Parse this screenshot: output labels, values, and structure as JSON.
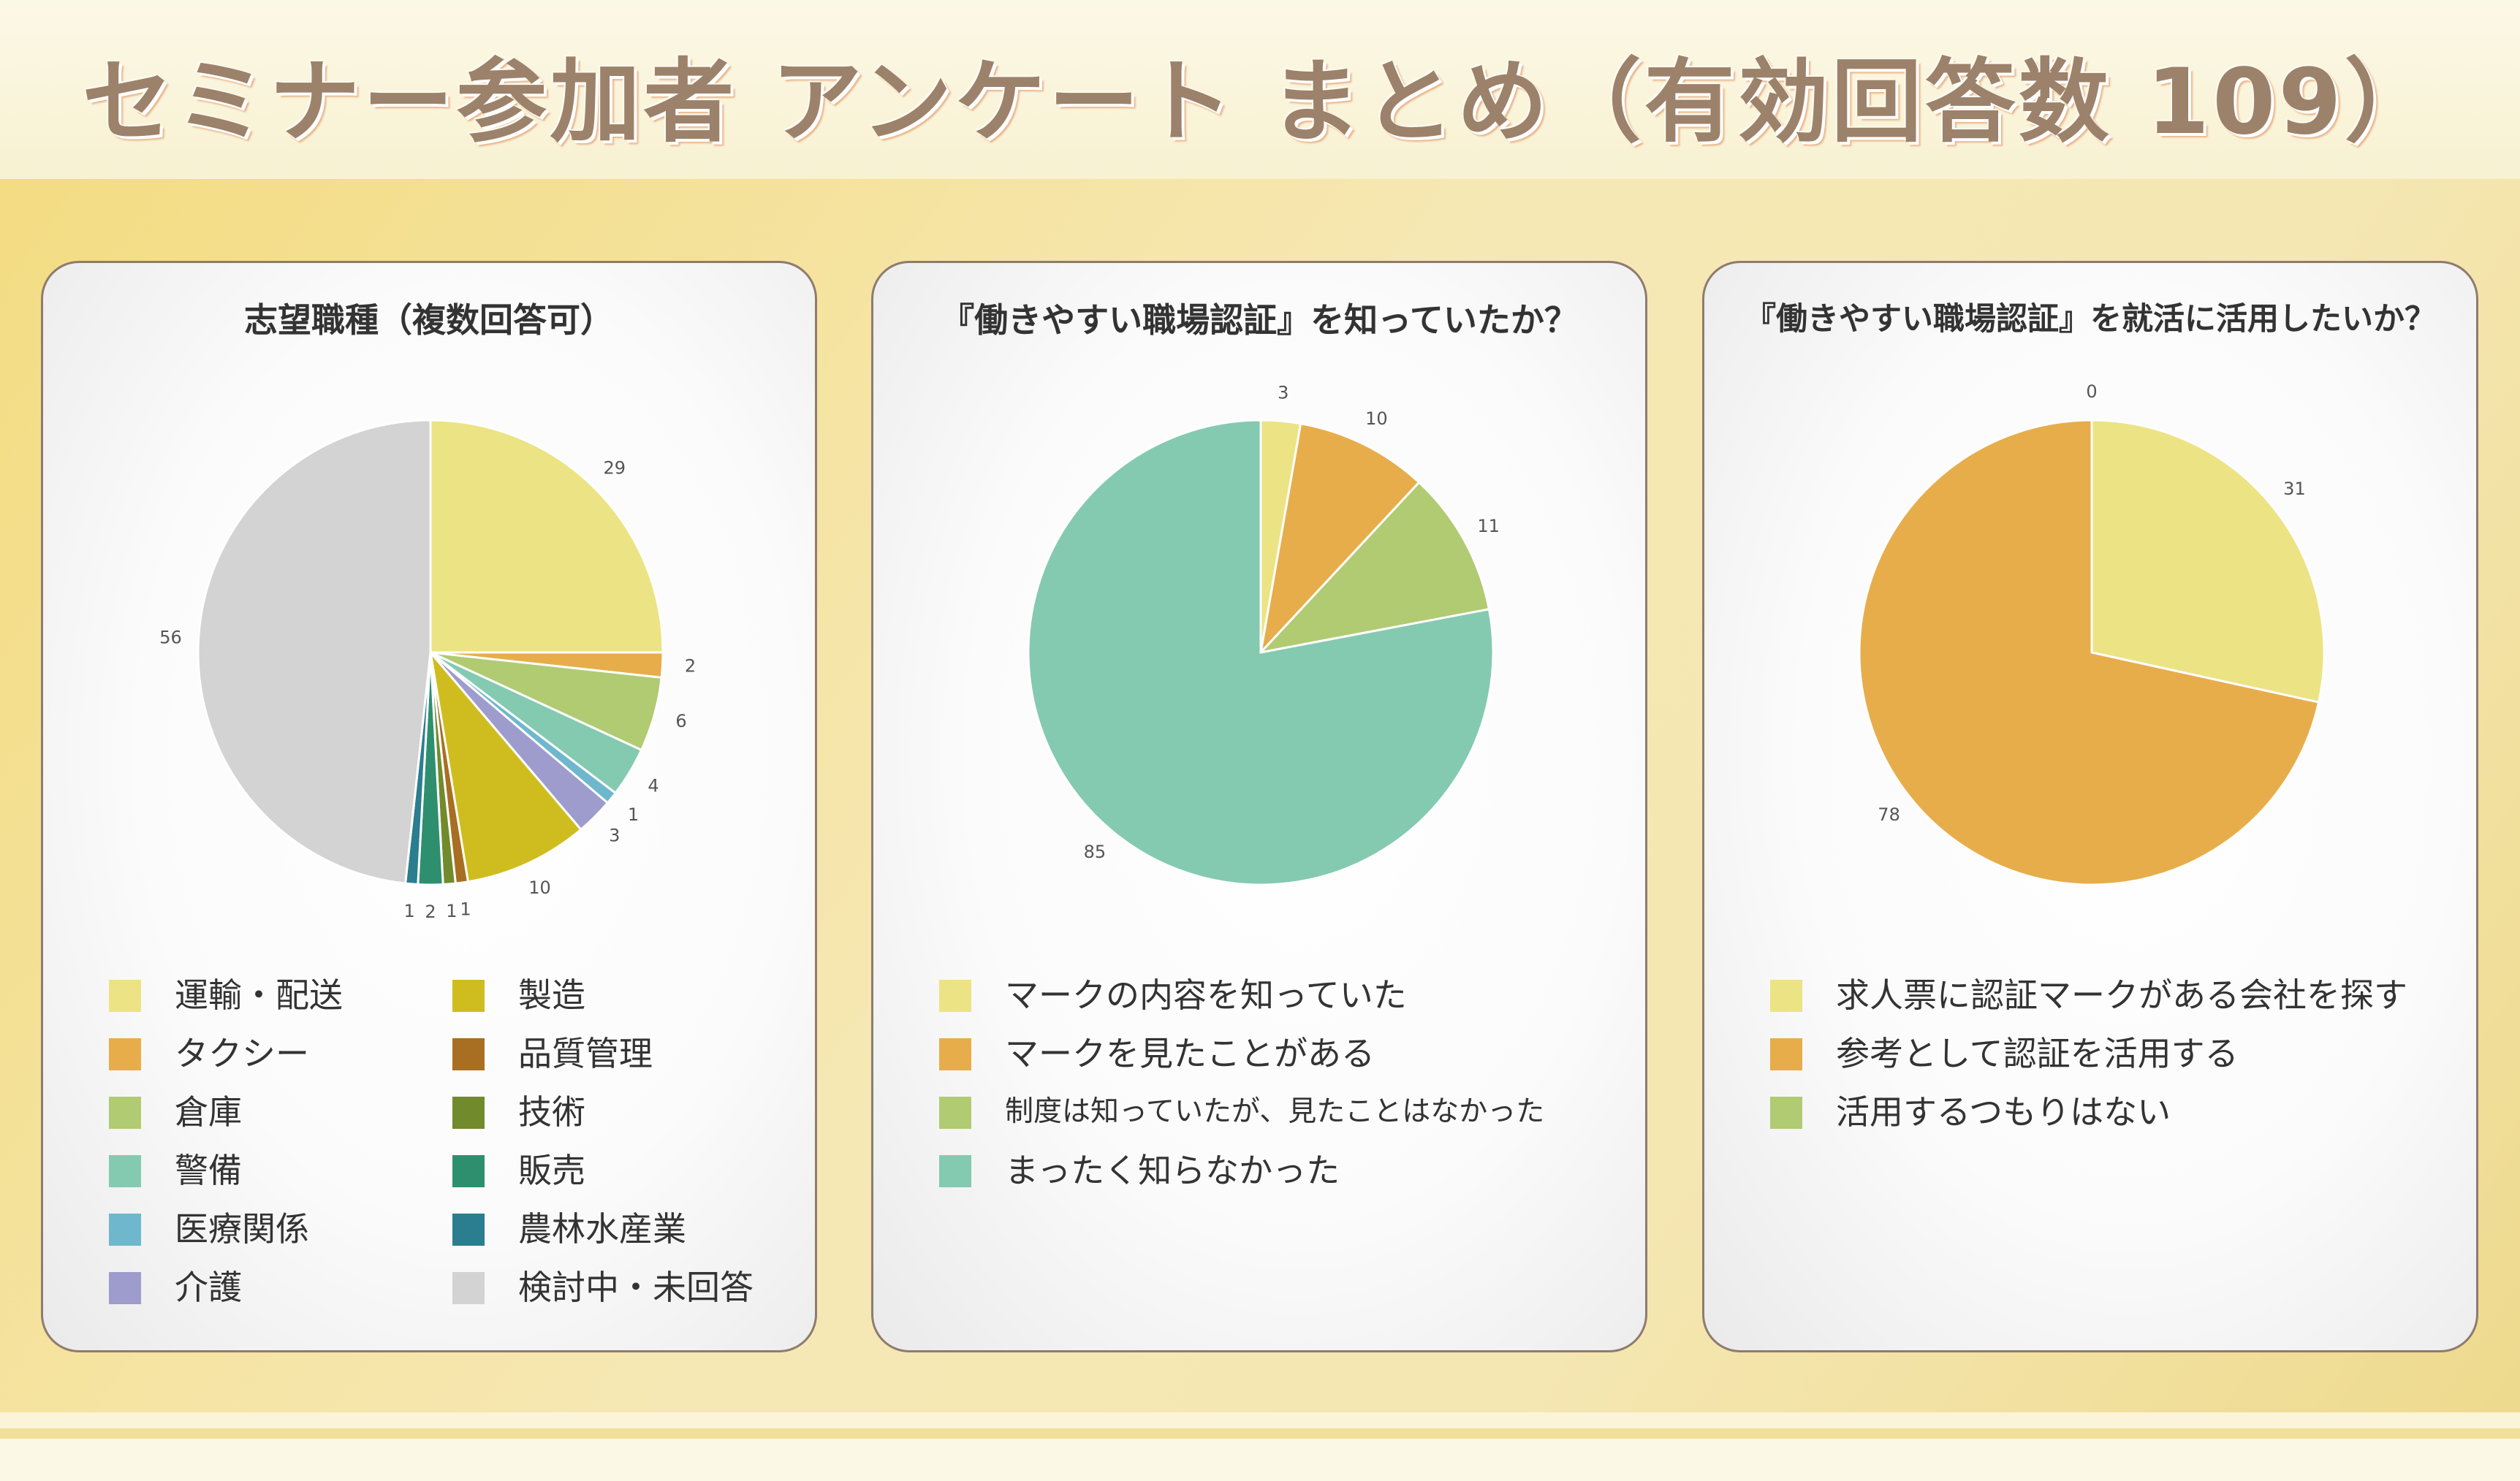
{
  "page": {
    "title": "セミナー参加者 アンケート まとめ（有効回答数 109）"
  },
  "colors": {
    "yellow": "#ece384",
    "orange": "#e7ad4b",
    "lightgreen": "#b0cb72",
    "mint": "#84cab0",
    "skyblue": "#6fb7cc",
    "lavender": "#9d9ccd",
    "olive": "#cfbd1f",
    "brown": "#a86f23",
    "darkgreen": "#718b2c",
    "teal": "#2e8f6e",
    "darkteal": "#2a7e8f",
    "gray": "#d3d3d3"
  },
  "chart_data": [
    {
      "type": "pie",
      "title": "志望職種（複数回答可）",
      "categories": [
        "運輸・配送",
        "タクシー",
        "倉庫",
        "警備",
        "医療関係",
        "介護",
        "製造",
        "品質管理",
        "技術",
        "販売",
        "農林水産業",
        "検討中・未回答"
      ],
      "values": [
        29,
        2,
        6,
        4,
        1,
        3,
        10,
        1,
        1,
        2,
        1,
        56
      ],
      "colors": [
        "#ece384",
        "#e7ad4b",
        "#b0cb72",
        "#84cab0",
        "#6fb7cc",
        "#9d9ccd",
        "#cfbd1f",
        "#a86f23",
        "#718b2c",
        "#2e8f6e",
        "#2a7e8f",
        "#d3d3d3"
      ],
      "legend_position": "bottom"
    },
    {
      "type": "pie",
      "title": "『働きやすい職場認証』を知っていたか？",
      "categories": [
        "マークの内容を知っていた",
        "マークを見たことがある",
        "制度は知っていたが、見たことはなかった",
        "まったく知らなかった"
      ],
      "values": [
        3,
        10,
        11,
        85
      ],
      "colors": [
        "#ece384",
        "#e7ad4b",
        "#b0cb72",
        "#84cab0"
      ],
      "legend_position": "bottom"
    },
    {
      "type": "pie",
      "title": "『働きやすい職場認証』を就活に活用したいか？",
      "categories": [
        "求人票に認証マークがある会社を探す",
        "参考として認証を活用する",
        "活用するつもりはない"
      ],
      "values": [
        31,
        78,
        0
      ],
      "colors": [
        "#ece384",
        "#e7ad4b",
        "#b0cb72"
      ],
      "legend_position": "bottom"
    }
  ]
}
